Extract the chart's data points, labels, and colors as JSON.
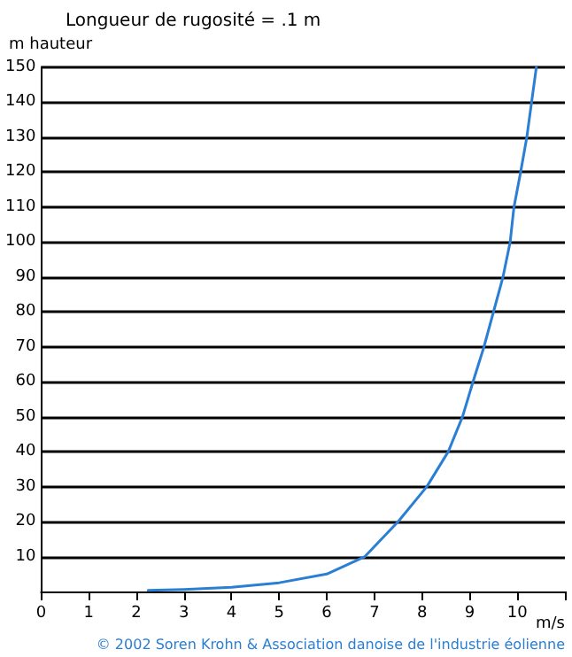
{
  "chart_data": {
    "type": "line",
    "title": "Longueur de rugosité = .1 m",
    "ylabel": "m hauteur",
    "xlabel": "m/s",
    "annotations": [
      "© 2002 Soren Krohn & Association danoise de l'industrie éolienne"
    ],
    "x": [
      2.25,
      3,
      4,
      5,
      6,
      6.8,
      7.5,
      8.1,
      8.55,
      8.85,
      9.07,
      9.3,
      9.5,
      9.7,
      9.85,
      9.93,
      10.07,
      10.2,
      10.3,
      10.4
    ],
    "series": [
      {
        "color": "#2a7fd4",
        "values": [
          0.3,
          0.6,
          1.2,
          2.5,
          5,
          10,
          20,
          30,
          40,
          50,
          60,
          70,
          80,
          90,
          100,
          110,
          120,
          130,
          140,
          150
        ]
      }
    ],
    "xlim": [
      0,
      11
    ],
    "xticks": [
      0,
      1,
      2,
      3,
      4,
      5,
      6,
      7,
      8,
      9,
      10,
      {
        "value": 11,
        "label": null
      }
    ],
    "ylim": [
      0,
      150
    ],
    "yticks": [
      10,
      20,
      30,
      40,
      50,
      60,
      70,
      80,
      90,
      100,
      110,
      120,
      130,
      140,
      150
    ],
    "grid": "y",
    "marker": "none",
    "line_style": "solid"
  }
}
